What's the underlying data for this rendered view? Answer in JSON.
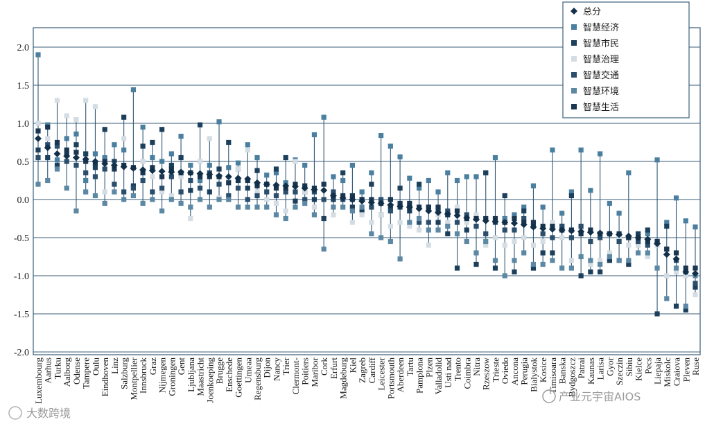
{
  "chart_data": {
    "type": "scatter",
    "title": "",
    "xlabel": "",
    "ylabel": "",
    "ylim": [
      -2.0,
      2.0
    ],
    "yticks": [
      "2.0",
      "1.5",
      "1.0",
      "0.5",
      "0.0",
      "-0.5",
      "-1.0",
      "-1.5",
      "-2.0"
    ],
    "grid": true,
    "legend_position": "top-right",
    "categories": [
      "Luxembourg",
      "Aarhus",
      "Turku",
      "Aalborg",
      "Odense",
      "Tampere",
      "Oulu",
      "Eindhoven",
      "Linz",
      "Salzburg",
      "Montpellier",
      "Innsbruck",
      "Graz",
      "Nijmegen",
      "Groningen",
      "Gent",
      "Ljubljana",
      "Maastricht",
      "Joenkoeping",
      "Brugge",
      "Enschede",
      "Goettingen",
      "Umeaa",
      "Regensburg",
      "Dijon",
      "Nancy",
      "Trier",
      "Clermont-",
      "Poitiers",
      "Maribor",
      "Cork",
      "Erfurt",
      "Magdeburg",
      "Kiel",
      "Zagreb",
      "Cardiff",
      "Leicester",
      "Portsmouth",
      "Aberdeen",
      "Tartu",
      "Pamplona",
      "Plzen",
      "Valladolid",
      "Usti nad",
      "Trento",
      "Coimbra",
      "Nitra",
      "Rzeszow",
      "Trieste",
      "Oviedo",
      "Ancona",
      "Perugia",
      "Bialystok",
      "Kosice",
      "Timisoara",
      "Banska",
      "Bydgoszcz",
      "Patrai",
      "Kaunas",
      "Larisa",
      "Gyor",
      "Szeczin",
      "Sibiu",
      "Kielce",
      "Pecs",
      "Liepaja",
      "Miskolc",
      "Craiova",
      "Pleven",
      "Ruse"
    ],
    "series": [
      {
        "name": "总分",
        "color": "#12304a",
        "marker": "diamond",
        "values": [
          0.8,
          0.68,
          0.6,
          0.57,
          0.55,
          0.53,
          0.5,
          0.47,
          0.45,
          0.43,
          0.41,
          0.39,
          0.38,
          0.37,
          0.36,
          0.36,
          0.35,
          0.34,
          0.33,
          0.31,
          0.3,
          0.28,
          0.27,
          0.22,
          0.2,
          0.19,
          0.18,
          0.17,
          0.15,
          0.13,
          0.12,
          0.05,
          0.02,
          0.0,
          -0.02,
          -0.04,
          -0.05,
          -0.07,
          -0.09,
          -0.1,
          -0.12,
          -0.15,
          -0.17,
          -0.19,
          -0.21,
          -0.24,
          -0.26,
          -0.28,
          -0.29,
          -0.3,
          -0.31,
          -0.33,
          -0.36,
          -0.38,
          -0.39,
          -0.4,
          -0.41,
          -0.42,
          -0.43,
          -0.44,
          -0.45,
          -0.46,
          -0.48,
          -0.5,
          -0.52,
          -0.58,
          -0.72,
          -0.78,
          -0.95,
          -0.97
        ]
      },
      {
        "name": "智慧经济",
        "color": "#4b7f9f",
        "marker": "square",
        "values": [
          1.9,
          0.98,
          0.52,
          0.8,
          0.86,
          0.25,
          0.6,
          0.55,
          0.72,
          0.65,
          1.44,
          0.95,
          0.55,
          0.5,
          0.6,
          0.83,
          0.45,
          0.25,
          0.45,
          1.02,
          0.42,
          0.48,
          0.72,
          0.55,
          0.32,
          0.35,
          0.22,
          0.52,
          0.45,
          0.85,
          1.08,
          0.3,
          0.25,
          0.45,
          0.1,
          0.35,
          0.84,
          0.7,
          0.56,
          0.28,
          0.15,
          0.25,
          0.1,
          0.35,
          0.25,
          0.3,
          0.3,
          0.35,
          0.55,
          -0.25,
          -0.2,
          -0.1,
          0.18,
          -0.1,
          0.65,
          -0.18,
          0.1,
          0.65,
          0.12,
          0.6,
          -0.05,
          -0.18,
          0.35,
          -0.45,
          -0.45,
          0.52,
          -0.3,
          0.02,
          -0.28,
          -0.36
        ]
      },
      {
        "name": "智慧市民",
        "color": "#1c3f5c",
        "marker": "square",
        "values": [
          0.65,
          0.55,
          0.45,
          0.6,
          0.72,
          0.6,
          0.42,
          0.92,
          0.5,
          1.08,
          0.18,
          0.7,
          0.75,
          0.92,
          0.45,
          0.55,
          0.12,
          0.98,
          0.1,
          0.4,
          0.75,
          0.4,
          0.15,
          0.38,
          0.2,
          0.4,
          0.55,
          -0.02,
          0.1,
          0.0,
          -0.25,
          0.0,
          0.35,
          -0.1,
          -0.15,
          0.2,
          -0.2,
          -0.1,
          0.15,
          -0.15,
          0.2,
          -0.1,
          -0.3,
          -0.45,
          -0.9,
          -0.4,
          -0.85,
          0.35,
          -0.9,
          0.05,
          -0.95,
          -0.15,
          -0.9,
          -0.7,
          -0.7,
          -0.35,
          0.05,
          -1.0,
          -0.95,
          -0.95,
          -0.8,
          -0.8,
          -0.85,
          -0.45,
          -0.4,
          -1.5,
          -0.35,
          -1.4,
          -1.45,
          -1.15
        ]
      },
      {
        "name": "智慧治理",
        "color": "#d4dde3",
        "marker": "square",
        "values": [
          1.0,
          0.8,
          1.3,
          1.1,
          1.05,
          1.3,
          1.22,
          0.1,
          0.45,
          0.8,
          0.05,
          0.5,
          0.3,
          0.1,
          0.05,
          0.3,
          -0.25,
          0.5,
          0.8,
          0.02,
          0.25,
          0.4,
          0.65,
          0.1,
          0.0,
          -0.05,
          -0.15,
          0.5,
          0.1,
          -0.1,
          0.0,
          -0.2,
          -0.1,
          -0.3,
          -0.2,
          -0.3,
          -0.2,
          -0.35,
          -0.3,
          -0.35,
          -0.4,
          -0.6,
          -0.2,
          -0.3,
          -0.1,
          -0.3,
          -0.2,
          -0.6,
          -0.5,
          -0.6,
          -0.55,
          -0.5,
          -0.6,
          -0.55,
          -0.3,
          -0.5,
          -0.8,
          -0.4,
          -0.85,
          -0.8,
          -0.7,
          -0.5,
          -0.6,
          -0.6,
          -0.75,
          -0.6,
          -1.0,
          -0.95,
          -1.0,
          -1.25
        ]
      },
      {
        "name": "智慧交通",
        "color": "#2a4e6c",
        "marker": "square",
        "values": [
          0.55,
          0.72,
          0.7,
          0.5,
          0.45,
          0.35,
          0.3,
          0.4,
          0.2,
          0.1,
          0.15,
          0.25,
          0.1,
          0.15,
          0.3,
          0.1,
          0.25,
          0.15,
          0.35,
          0.2,
          0.05,
          0.15,
          0.0,
          0.05,
          0.1,
          0.05,
          0.1,
          0.1,
          0.0,
          0.1,
          0.0,
          0.1,
          0.0,
          0.0,
          0.0,
          -0.1,
          0.0,
          -0.15,
          -0.1,
          -0.1,
          -0.3,
          -0.3,
          -0.15,
          -0.15,
          -0.3,
          -0.2,
          -0.35,
          -0.45,
          -0.3,
          -0.4,
          -0.4,
          -0.25,
          -0.35,
          -0.45,
          -0.5,
          -0.35,
          -0.5,
          -0.35,
          -0.55,
          -0.5,
          -0.45,
          -0.55,
          -0.5,
          -0.55,
          -0.6,
          -0.55,
          -0.65,
          -0.8,
          -0.95,
          -1.1
        ]
      },
      {
        "name": "智慧环境",
        "color": "#5c88a3",
        "marker": "square",
        "values": [
          0.2,
          0.25,
          0.4,
          0.15,
          -0.15,
          0.1,
          0.05,
          -0.05,
          0.1,
          0.0,
          0.05,
          -0.05,
          0.0,
          -0.15,
          0.0,
          -0.05,
          -0.1,
          0.0,
          -0.1,
          0.0,
          0.0,
          -0.1,
          -0.1,
          -0.1,
          -0.1,
          -0.2,
          -0.25,
          -0.1,
          -0.05,
          -0.2,
          -0.65,
          -0.1,
          -0.1,
          -0.15,
          -0.1,
          -0.45,
          -0.5,
          -0.55,
          -0.78,
          -0.3,
          -0.25,
          -0.4,
          -0.4,
          -0.35,
          -0.45,
          -0.55,
          -0.7,
          -0.55,
          -0.8,
          -1.0,
          -0.8,
          -0.7,
          -0.85,
          -0.85,
          -0.8,
          -0.9,
          -0.9,
          -0.75,
          -0.8,
          -0.85,
          -0.75,
          -0.8,
          -0.8,
          -0.7,
          -0.7,
          -0.9,
          -1.3,
          -0.9,
          -1.4,
          -1.0
        ]
      },
      {
        "name": "智慧生活",
        "color": "#1a3650",
        "marker": "square",
        "values": [
          0.9,
          0.95,
          0.75,
          0.65,
          0.62,
          0.5,
          0.48,
          0.5,
          0.4,
          0.45,
          0.42,
          0.35,
          0.42,
          0.3,
          0.4,
          0.35,
          0.35,
          0.3,
          0.3,
          0.3,
          0.22,
          0.25,
          0.25,
          0.18,
          0.2,
          0.15,
          0.15,
          0.2,
          0.18,
          0.15,
          0.2,
          0.05,
          0.05,
          0.05,
          0.0,
          0.0,
          -0.05,
          0.0,
          -0.05,
          -0.05,
          -0.1,
          -0.1,
          -0.1,
          -0.2,
          -0.15,
          -0.25,
          -0.25,
          -0.25,
          -0.25,
          -0.3,
          -0.25,
          -0.3,
          -0.3,
          -0.35,
          -0.35,
          -0.4,
          -0.4,
          -0.45,
          -0.4,
          -0.45,
          -0.45,
          -0.45,
          -0.5,
          -0.5,
          -0.55,
          -0.55,
          -0.65,
          -0.7,
          -0.9,
          -0.9
        ]
      }
    ]
  },
  "watermarks": {
    "left": "大数跨境",
    "right": "产业元宇宙AIOS"
  }
}
